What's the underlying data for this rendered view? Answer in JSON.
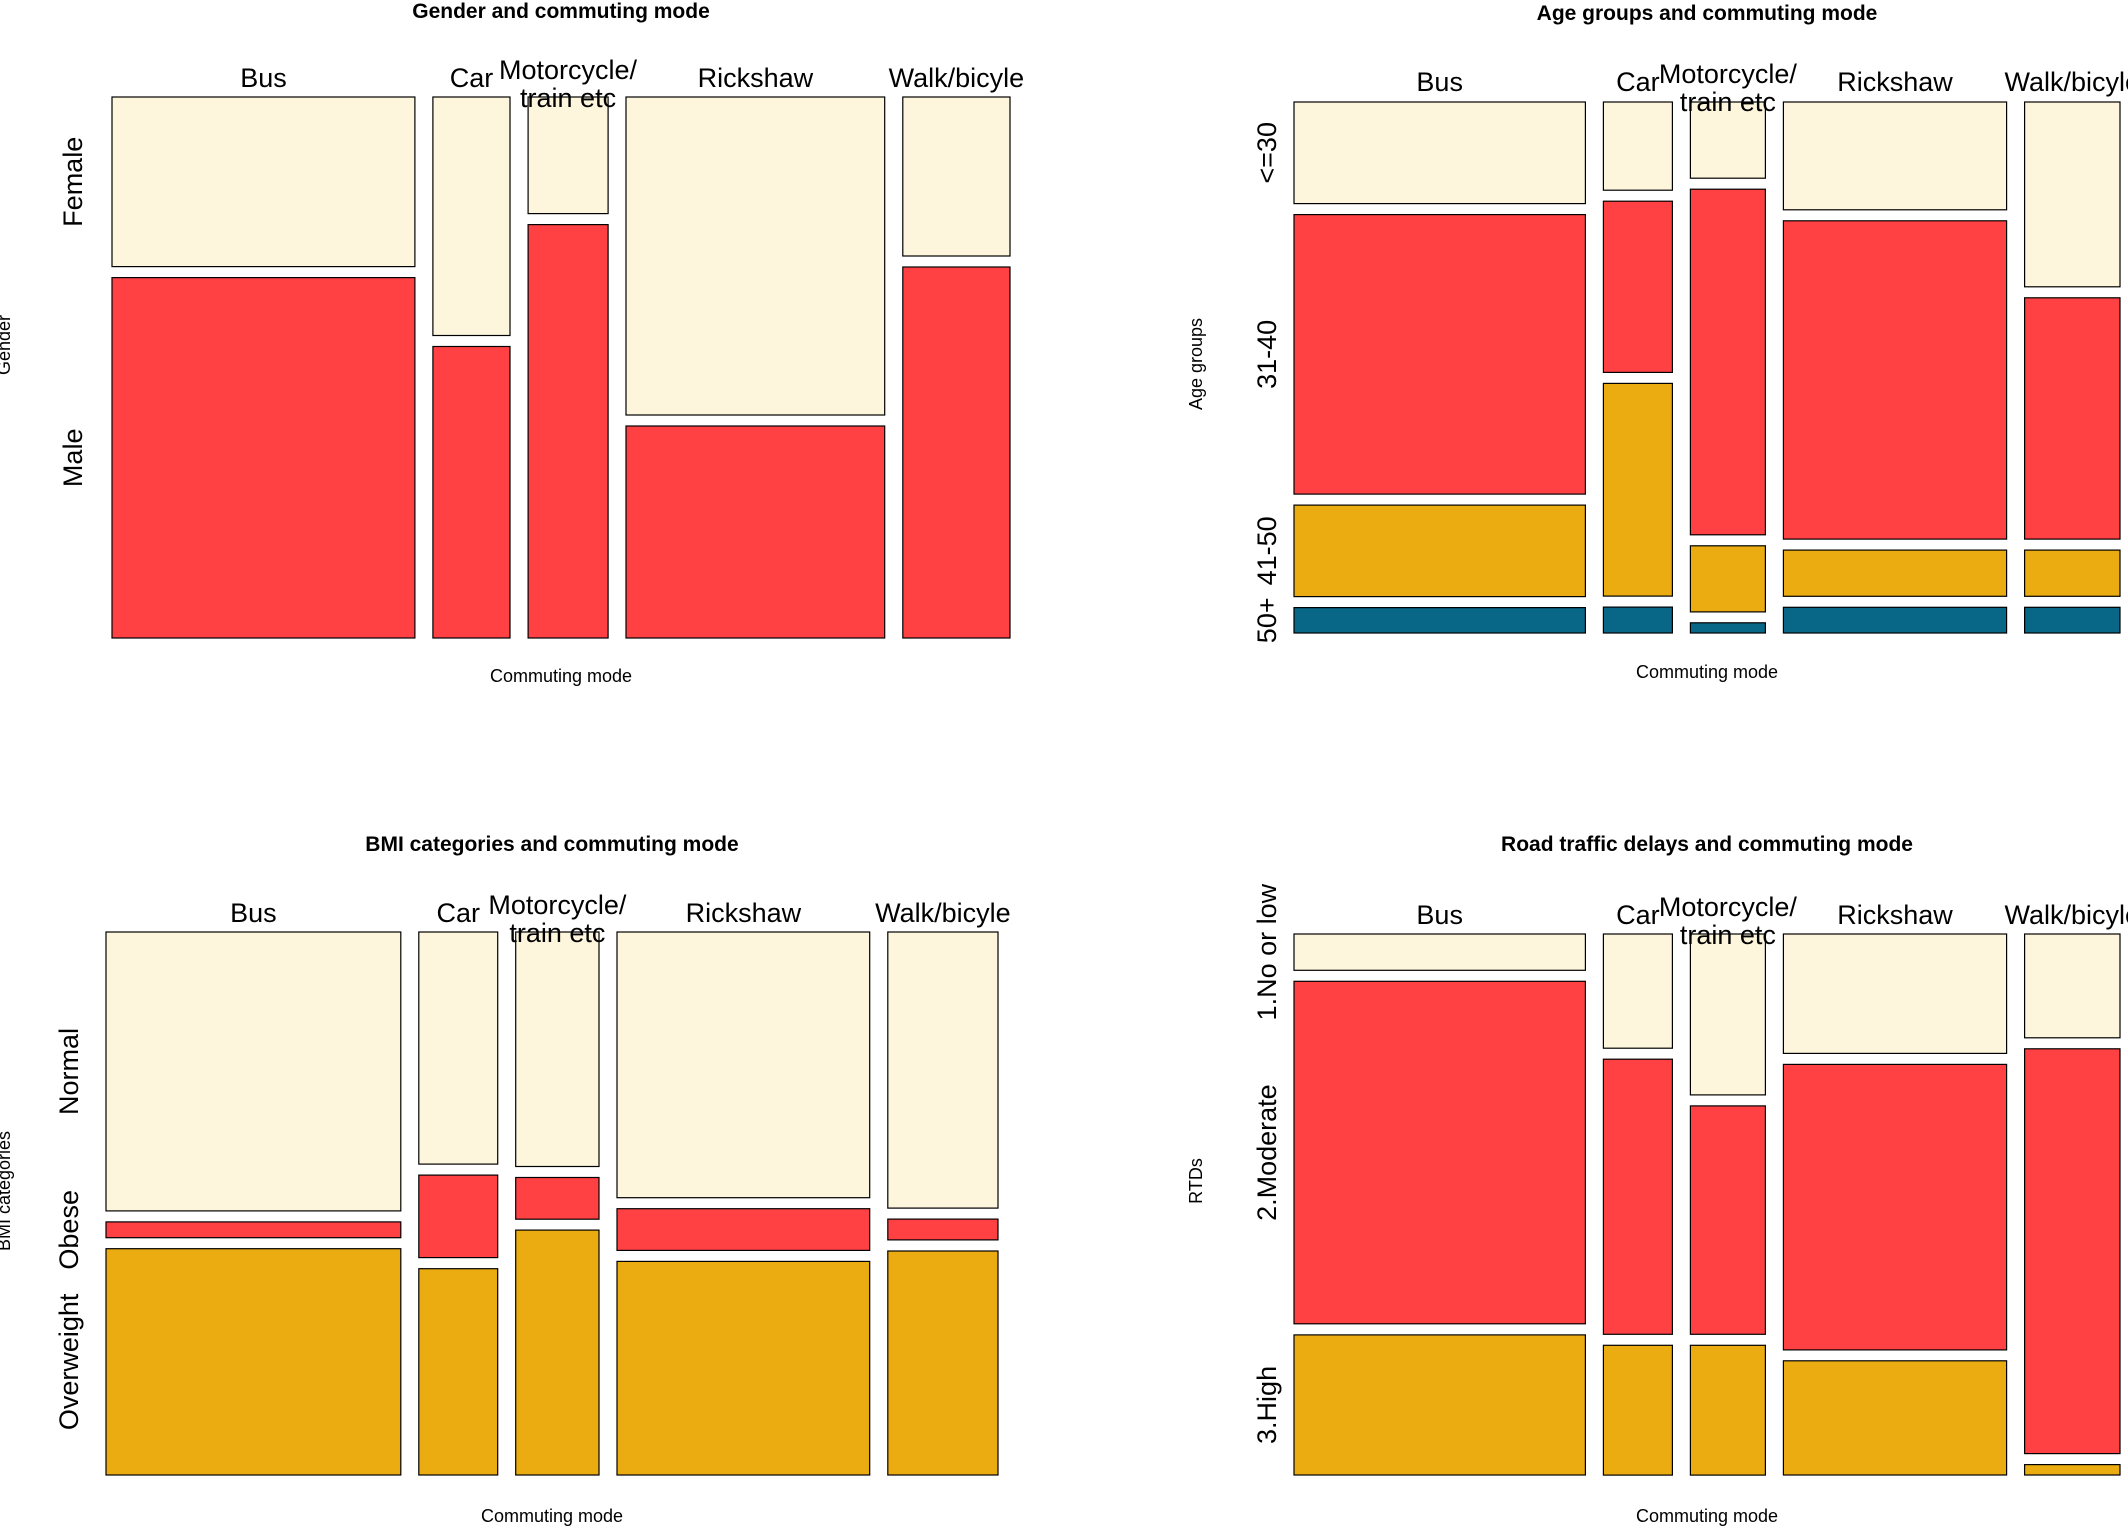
{
  "chart_data": [
    {
      "type": "mosaic",
      "title": "Gender and commuting mode",
      "xlabel": "Commuting mode",
      "ylabel": "Gender",
      "categories": [
        "Bus",
        "Car",
        "Motorcycle/ train etc",
        "Rickshaw",
        "Walk/bicyle"
      ],
      "column_widths": [
        0.322,
        0.082,
        0.085,
        0.275,
        0.114
      ],
      "levels": [
        "Female",
        "Male"
      ],
      "proportions": [
        [
          0.32,
          0.68
        ],
        [
          0.45,
          0.55
        ],
        [
          0.22,
          0.78
        ],
        [
          0.6,
          0.4
        ],
        [
          0.3,
          0.7
        ]
      ],
      "colors": [
        "#fdf6dc",
        "#ff4144"
      ]
    },
    {
      "type": "mosaic",
      "title": "Age groups and commuting mode",
      "xlabel": "Commuting mode",
      "ylabel": "Age groups",
      "categories": [
        "Bus",
        "Car",
        "Motorcycle/ train etc",
        "Rickshaw",
        "Walk/bicyle"
      ],
      "column_widths": [
        0.342,
        0.081,
        0.088,
        0.262,
        0.112
      ],
      "levels": [
        "<=30",
        "31-40",
        "41-50",
        "50+"
      ],
      "proportions": [
        [
          0.2,
          0.55,
          0.18,
          0.05
        ],
        [
          0.17,
          0.33,
          0.41,
          0.05
        ],
        [
          0.15,
          0.68,
          0.13,
          0.02
        ],
        [
          0.21,
          0.62,
          0.09,
          0.05
        ],
        [
          0.36,
          0.47,
          0.09,
          0.05
        ]
      ],
      "colors": [
        "#fdf6dc",
        "#ff4144",
        "#ebac12",
        "#086787"
      ]
    },
    {
      "type": "mosaic",
      "title": "BMI categories and commuting mode",
      "xlabel": "Commuting mode",
      "ylabel": "BMI categories",
      "categories": [
        "Bus",
        "Car",
        "Motorcycle/ train etc",
        "Rickshaw",
        "Walk/bicyle"
      ],
      "column_widths": [
        0.329,
        0.088,
        0.093,
        0.282,
        0.123
      ],
      "levels": [
        "Normal",
        "Obese",
        "Overweight"
      ],
      "proportions": [
        [
          0.53,
          0.03,
          0.43
        ],
        [
          0.45,
          0.16,
          0.4
        ],
        [
          0.45,
          0.08,
          0.47
        ],
        [
          0.51,
          0.08,
          0.41
        ],
        [
          0.53,
          0.04,
          0.43
        ]
      ],
      "colors": [
        "#fdf6dc",
        "#ff4144",
        "#ebac12"
      ]
    },
    {
      "type": "mosaic",
      "title": "Road traffic delays and commuting mode",
      "xlabel": "Commuting mode",
      "ylabel": "RTDs",
      "categories": [
        "Bus",
        "Car",
        "Motorcycle/ train etc",
        "Rickshaw",
        "Walk/bicyle"
      ],
      "column_widths": [
        0.342,
        0.081,
        0.088,
        0.262,
        0.112
      ],
      "levels": [
        "1.No or low",
        "2.Moderate",
        "3.High"
      ],
      "proportions": [
        [
          0.07,
          0.66,
          0.27
        ],
        [
          0.22,
          0.53,
          0.25
        ],
        [
          0.31,
          0.44,
          0.25
        ],
        [
          0.23,
          0.55,
          0.22
        ],
        [
          0.2,
          0.78,
          0.02
        ]
      ],
      "colors": [
        "#fdf6dc",
        "#ff4144",
        "#ebac12"
      ]
    }
  ]
}
